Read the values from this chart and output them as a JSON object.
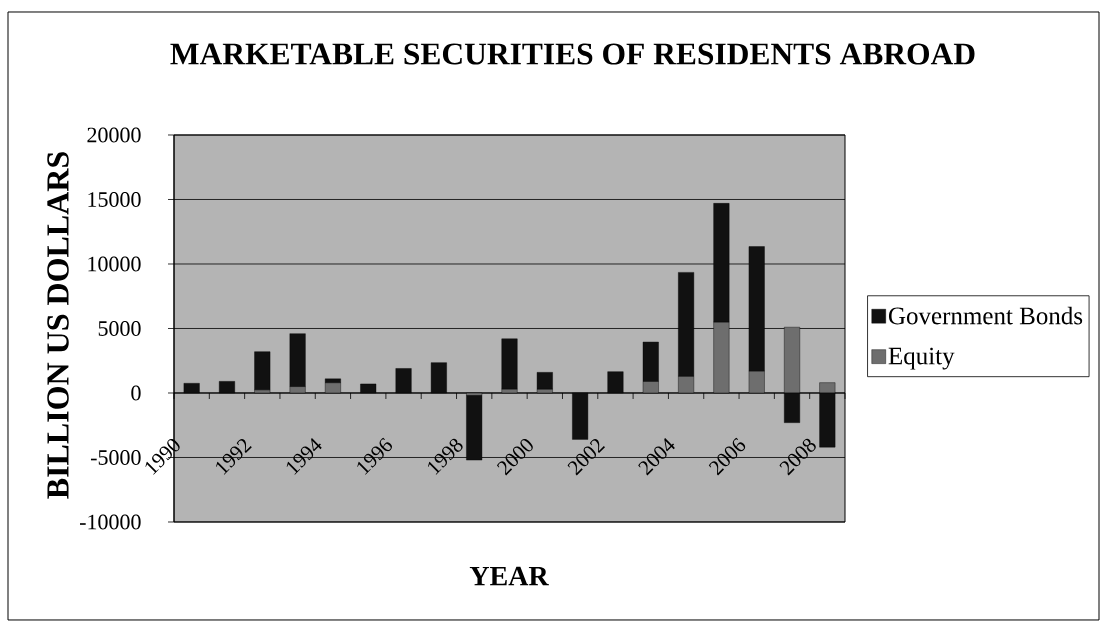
{
  "chart_data": {
    "type": "bar",
    "stacked": true,
    "title": "MARKETABLE SECURITIES OF RESIDENTS ABROAD",
    "xlabel": "YEAR",
    "ylabel": "BILLION US DOLLARS",
    "categories": [
      "1990",
      null,
      "1992",
      null,
      "1994",
      null,
      "1996",
      null,
      "1998",
      null,
      "2000",
      null,
      "2002",
      null,
      "2004",
      null,
      "2006",
      null,
      "2008"
    ],
    "series": [
      {
        "name": "Equity",
        "color": "#6e6e6e",
        "values": [
          0,
          0,
          250,
          500,
          800,
          0,
          0,
          0,
          -200,
          300,
          300,
          0,
          0,
          900,
          1300,
          5500,
          1700,
          5100,
          800
        ]
      },
      {
        "name": "Government Bonds",
        "color": "#111111",
        "values": [
          750,
          900,
          2950,
          4100,
          300,
          700,
          1900,
          2350,
          -5000,
          3900,
          1300,
          -3600,
          1650,
          3050,
          8050,
          9200,
          9650,
          -2300,
          -4200
        ]
      }
    ],
    "ylim": [
      -10000,
      20000
    ],
    "yticks": [
      -10000,
      -5000,
      0,
      5000,
      10000,
      15000,
      20000
    ],
    "grid": "y",
    "legend": "right"
  }
}
